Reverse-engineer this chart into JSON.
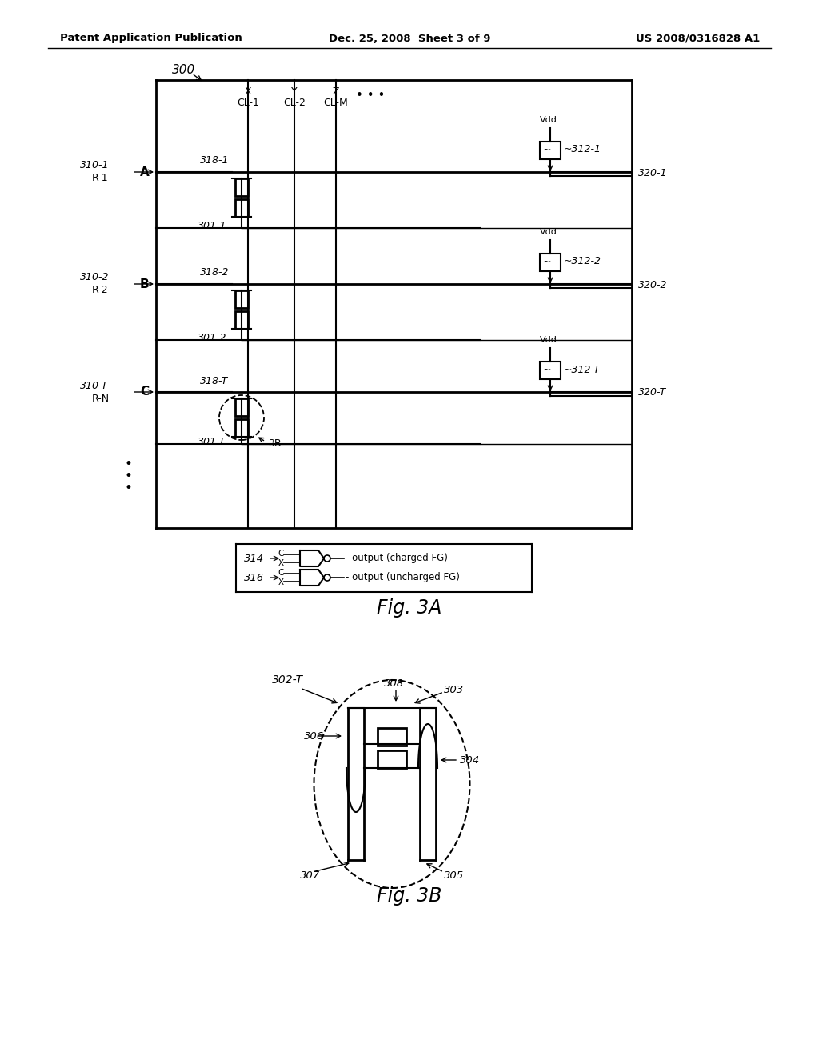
{
  "bg_color": "#ffffff",
  "header_left": "Patent Application Publication",
  "header_mid": "Dec. 25, 2008  Sheet 3 of 9",
  "header_right": "US 2008/0316828 A1",
  "fig3a_label": "Fig. 3A",
  "fig3b_label": "Fig. 3B"
}
